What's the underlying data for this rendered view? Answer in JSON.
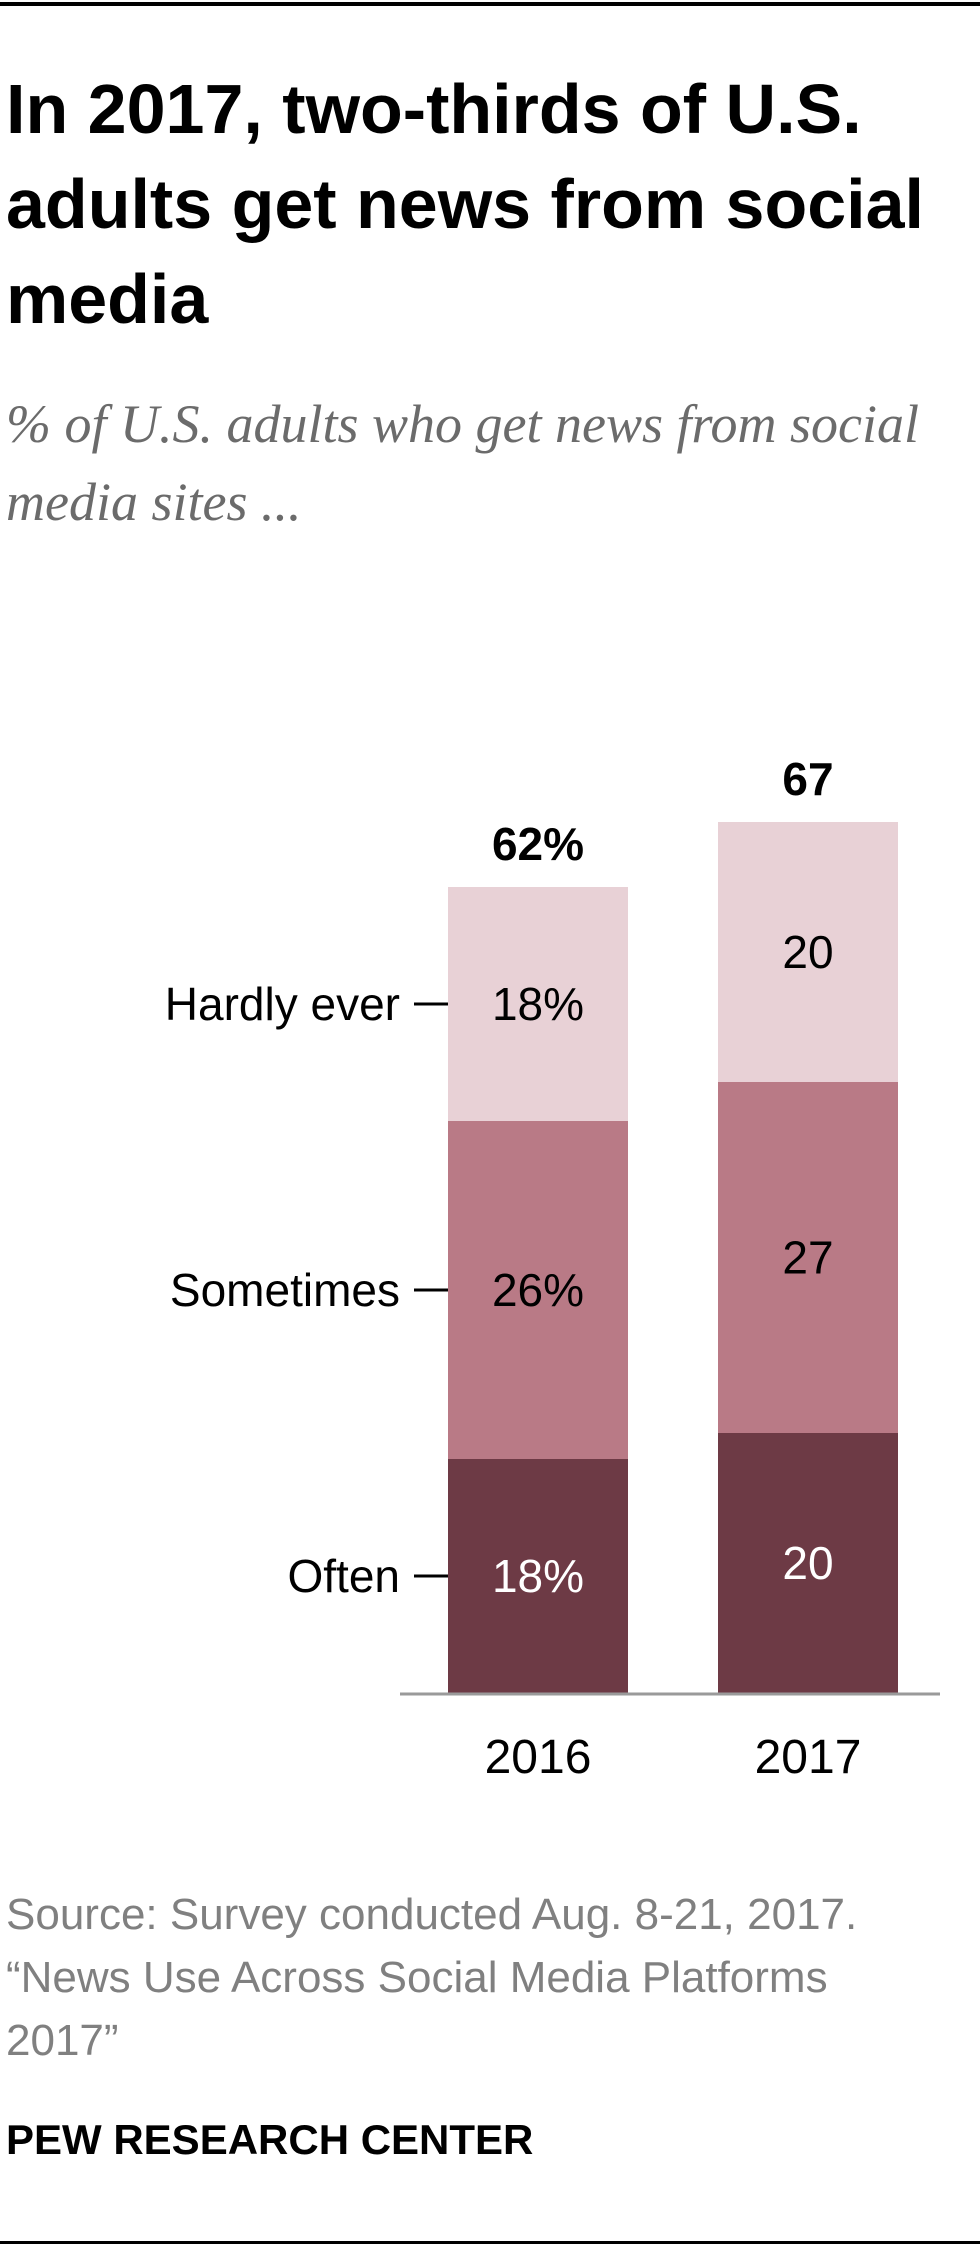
{
  "title": "In 2017, two-thirds of U.S. adults get news from social media",
  "subtitle": "% of U.S. adults who get news from social media sites ...",
  "source": {
    "line1": "Source: Survey conducted Aug. 8-21, 2017.",
    "line2": "“News Use Across Social Media Platforms",
    "line3": "2017”"
  },
  "brand": "PEW RESEARCH CENTER",
  "colors": {
    "often": "#6d3a45",
    "sometimes": "#b97a86",
    "hardly_ever": "#e8d1d6",
    "axis": "#9a9a9a"
  },
  "chart_data": {
    "type": "bar",
    "stacked": true,
    "categories": [
      "2016",
      "2017"
    ],
    "series": [
      {
        "name": "Often",
        "values": [
          18,
          20
        ],
        "labels": [
          "18%",
          "20"
        ]
      },
      {
        "name": "Sometimes",
        "values": [
          26,
          27
        ],
        "labels": [
          "26%",
          "27"
        ]
      },
      {
        "name": "Hardly ever",
        "values": [
          18,
          20
        ],
        "labels": [
          "18%",
          "20"
        ]
      }
    ],
    "totals": [
      62,
      67
    ],
    "total_labels": [
      "62%",
      "67"
    ],
    "legend": "left-labels"
  }
}
